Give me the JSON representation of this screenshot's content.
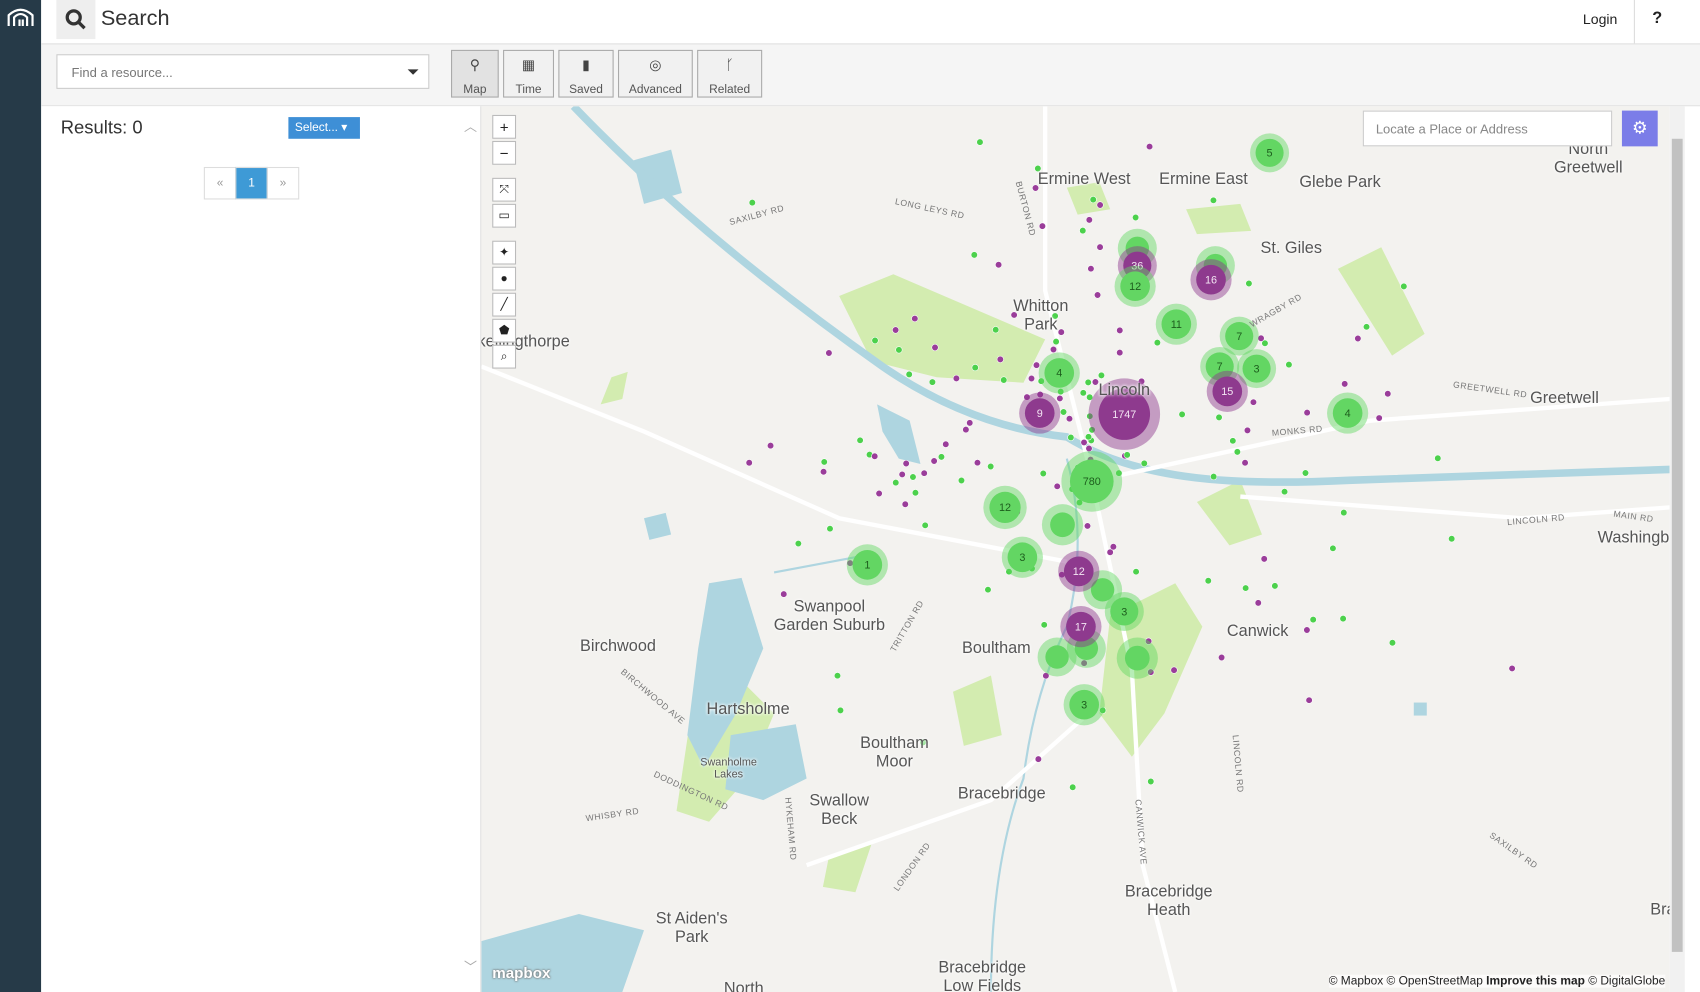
{
  "header": {
    "title": "Search",
    "login": "Login",
    "help": "?"
  },
  "search": {
    "placeholder": "Find a resource..."
  },
  "tabs": [
    "Map",
    "Time",
    "Saved",
    "Advanced",
    "Related"
  ],
  "results": {
    "label": "Results: 0",
    "select": "Select...",
    "pagination": [
      "«",
      "1",
      "»"
    ]
  },
  "map": {
    "locate_placeholder": "Locate a Place or Address",
    "places": [
      "Ermine West",
      "Ermine East",
      "Glebe Park",
      "North Greetwell",
      "St. Giles",
      "Whitton Park",
      "Lincoln",
      "Greetwell",
      "Washingborough",
      "Canwick",
      "Boultham",
      "Swanpool Garden Suburb",
      "Birchwood",
      "Hartsholme",
      "Boultham Moor",
      "Swallow Beck",
      "Bracebridge",
      "Bracebridge Heath",
      "St Aiden's Park",
      "Bracebridge Low Fields",
      "Skellingthorpe",
      "Bran",
      "Swanholme Lakes",
      "North"
    ],
    "roads": [
      "SAXILBY RD",
      "LONG LEYS RD",
      "BURTON RD",
      "WRAGBY RD",
      "GREETWELL RD",
      "MONKS RD",
      "LINCOLN RD",
      "MAIN RD",
      "TRITTON RD",
      "BIRCHWOOD AVE",
      "DODDINGTON RD",
      "WHISBY RD",
      "HYKEHAM RD",
      "LONDON RD",
      "CANWICK AVE",
      "LINCOLN RD",
      "SAXILBY RD"
    ],
    "clusters": [
      "5",
      "36",
      "12",
      "16",
      "11",
      "7",
      "7",
      "3",
      "4",
      "1747",
      "9",
      "15",
      "4",
      "780",
      "12",
      "3",
      "12",
      "3",
      "17",
      "3",
      "1"
    ],
    "attribution": [
      "© Mapbox © OpenStreetMap",
      "Improve this map",
      "© DigitalGlobe"
    ],
    "logo": "mapbox"
  }
}
